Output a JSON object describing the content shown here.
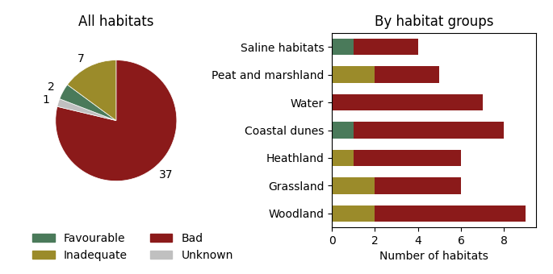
{
  "chart_data": [
    {
      "type": "pie",
      "title": "All habitats",
      "values": [
        37,
        1,
        2,
        7
      ],
      "colors": [
        "#8B1A1A",
        "#C0C0C0",
        "#4A7A5A",
        "#9B8B2A"
      ],
      "data_labels": true
    },
    {
      "type": "bar",
      "orientation": "horizontal",
      "stacked": true,
      "title": "By habitat groups",
      "xlabel": "Number of habitats",
      "categories": [
        "Saline habitats",
        "Peat and marshland",
        "Water",
        "Coastal dunes",
        "Heathland",
        "Grassland",
        "Woodland"
      ],
      "series": [
        {
          "name": "Favourable",
          "color": "#4A7A5A",
          "values": [
            1,
            0,
            0,
            1,
            0,
            0,
            0
          ]
        },
        {
          "name": "Inadequate",
          "color": "#9B8B2A",
          "values": [
            0,
            2,
            0,
            0,
            1,
            2,
            2
          ]
        },
        {
          "name": "Bad",
          "color": "#8B1A1A",
          "values": [
            3,
            3,
            7,
            7,
            5,
            4,
            7
          ]
        },
        {
          "name": "Unknown",
          "color": "#C0C0C0",
          "values": [
            0,
            0,
            0,
            0,
            0,
            0,
            0
          ]
        }
      ],
      "xlim": [
        0,
        9.5
      ],
      "xticks": [
        0,
        2,
        4,
        6,
        8
      ],
      "legend": "lower left"
    }
  ]
}
